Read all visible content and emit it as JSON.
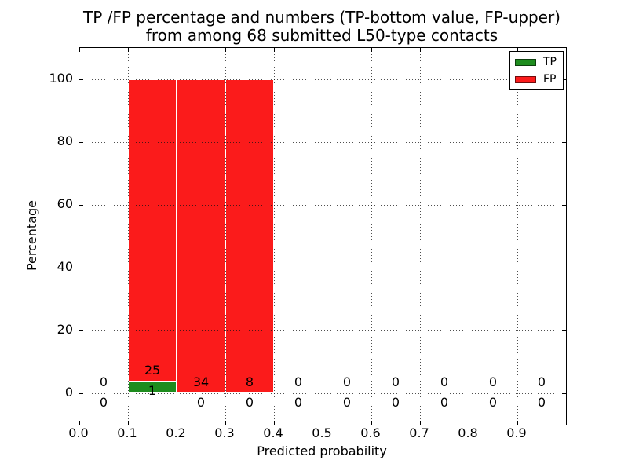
{
  "chart_data": {
    "type": "bar",
    "stacked": true,
    "title_line1": "TP /FP percentage and numbers (TP-bottom value, FP-upper)",
    "title_line2": "from among 68 submitted L50-type contacts",
    "xlabel": "Predicted probability",
    "ylabel": "Percentage",
    "xlim": [
      0.0,
      1.0
    ],
    "ylim": [
      -10,
      110
    ],
    "grid": "dotted",
    "legend_position": "upper-right",
    "bin_width": 0.1,
    "xticks": [
      {
        "label": "0.0",
        "value": 0.0
      },
      {
        "label": "0.1",
        "value": 0.1
      },
      {
        "label": "0.2",
        "value": 0.2
      },
      {
        "label": "0.3",
        "value": 0.3
      },
      {
        "label": "0.4",
        "value": 0.4
      },
      {
        "label": "0.5",
        "value": 0.5
      },
      {
        "label": "0.6",
        "value": 0.6
      },
      {
        "label": "0.7",
        "value": 0.7
      },
      {
        "label": "0.8",
        "value": 0.8
      },
      {
        "label": "0.9",
        "value": 0.9
      }
    ],
    "yticks": [
      {
        "label": "0",
        "value": 0
      },
      {
        "label": "20",
        "value": 20
      },
      {
        "label": "40",
        "value": 40
      },
      {
        "label": "60",
        "value": 60
      },
      {
        "label": "80",
        "value": 80
      },
      {
        "label": "100",
        "value": 100
      }
    ],
    "bins": [
      {
        "center": 0.05,
        "tp_count": 0,
        "fp_count": 0,
        "tp_pct": 0,
        "fp_pct": 0
      },
      {
        "center": 0.15,
        "tp_count": 1,
        "fp_count": 25,
        "tp_pct": 3.85,
        "fp_pct": 96.15
      },
      {
        "center": 0.25,
        "tp_count": 0,
        "fp_count": 34,
        "tp_pct": 0,
        "fp_pct": 100
      },
      {
        "center": 0.35,
        "tp_count": 0,
        "fp_count": 8,
        "tp_pct": 0,
        "fp_pct": 100
      },
      {
        "center": 0.45,
        "tp_count": 0,
        "fp_count": 0,
        "tp_pct": 0,
        "fp_pct": 0
      },
      {
        "center": 0.55,
        "tp_count": 0,
        "fp_count": 0,
        "tp_pct": 0,
        "fp_pct": 0
      },
      {
        "center": 0.65,
        "tp_count": 0,
        "fp_count": 0,
        "tp_pct": 0,
        "fp_pct": 0
      },
      {
        "center": 0.75,
        "tp_count": 0,
        "fp_count": 0,
        "tp_pct": 0,
        "fp_pct": 0
      },
      {
        "center": 0.85,
        "tp_count": 0,
        "fp_count": 0,
        "tp_pct": 0,
        "fp_pct": 0
      },
      {
        "center": 0.95,
        "tp_count": 0,
        "fp_count": 0,
        "tp_pct": 0,
        "fp_pct": 0
      }
    ],
    "legend": [
      {
        "label": "TP",
        "color": "#1e8c1e"
      },
      {
        "label": "FP",
        "color": "#fb1b1b"
      }
    ],
    "colors": {
      "tp": "#1e8c1e",
      "fp": "#fb1b1b",
      "spine": "#000000",
      "grid": "#333333",
      "background": "#ffffff"
    }
  }
}
